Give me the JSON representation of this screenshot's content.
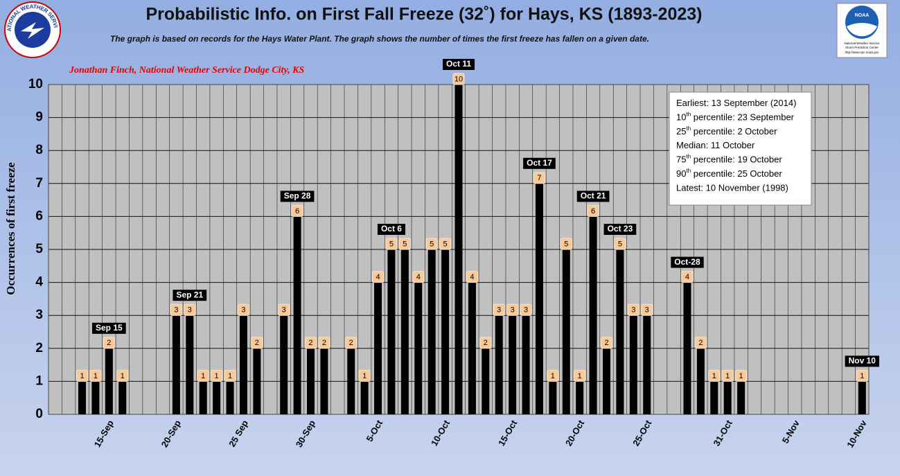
{
  "chart_data": {
    "type": "bar",
    "title": "Probabilistic Info. on First Fall Freeze (32˚) for Hays, KS (1893-2023)",
    "subtitle": "The graph is based on records for the Hays Water Plant. The graph shows the number of times the first freeze has fallen on a given date.",
    "author": "Jonathan Finch, National Weather Service Dodge City, KS",
    "y_label": "Occurrences of first freeze",
    "logo_left": "NATIONAL WEATHER SERVICE",
    "logo_right": {
      "name": "NOAA",
      "line1": "National Weather Service",
      "line2": "Storm Prediction Center",
      "url": "http://www.spc.noaa.gov"
    },
    "categories": [
      null,
      null,
      null,
      null,
      "15-Sep",
      null,
      null,
      null,
      null,
      "20-Sep",
      null,
      null,
      null,
      null,
      "25 Sep",
      null,
      null,
      null,
      null,
      "30-Sep",
      null,
      null,
      null,
      null,
      "5-Oct",
      null,
      null,
      null,
      null,
      "10-Oct",
      null,
      null,
      null,
      null,
      "15-Oct",
      null,
      null,
      null,
      null,
      "20-Oct",
      null,
      null,
      null,
      null,
      "25-Oct",
      null,
      null,
      null,
      null,
      null,
      "31-Oct",
      null,
      null,
      null,
      null,
      "5-Nov",
      null,
      null,
      null,
      null,
      "10-Nov"
    ],
    "values": [
      0,
      0,
      1,
      1,
      2,
      1,
      0,
      0,
      0,
      3,
      3,
      1,
      1,
      1,
      3,
      2,
      0,
      3,
      6,
      2,
      2,
      0,
      2,
      1,
      4,
      5,
      5,
      4,
      5,
      5,
      10,
      4,
      2,
      3,
      3,
      3,
      7,
      1,
      5,
      1,
      6,
      2,
      5,
      3,
      3,
      0,
      0,
      4,
      2,
      1,
      1,
      1,
      0,
      0,
      0,
      0,
      0,
      0,
      0,
      0,
      1
    ],
    "color": "#000000",
    "ylim": [
      0,
      10
    ],
    "yticks": [
      0,
      1,
      2,
      3,
      4,
      5,
      6,
      7,
      8,
      9,
      10
    ],
    "grid": true,
    "annotations": [
      "Sep 15",
      "Sep 21",
      "Sep 28",
      "Oct 6",
      "Oct 11",
      "Oct 17",
      "Oct 21",
      "Oct 23",
      "Oct-28",
      "Nov 10"
    ],
    "info_box": [
      {
        "text": "Earliest: 13 September (2014)"
      },
      {
        "lead": "10",
        "sup": "th",
        "text": " percentile: 23 September"
      },
      {
        "lead": "25",
        "sup": "th",
        "text": " percentile: 2 October"
      },
      {
        "text": "Median: 11 October"
      },
      {
        "lead": "75",
        "sup": "th",
        "text": " percentile: 19 October"
      },
      {
        "lead": "90",
        "sup": "th",
        "text": " percentile: 25 October"
      },
      {
        "text": "Latest: 10 November (1998)"
      }
    ]
  }
}
